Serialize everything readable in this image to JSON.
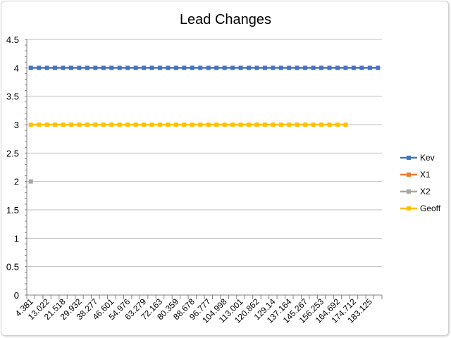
{
  "chart_data": {
    "type": "line",
    "title": "Lead Changes",
    "xlabel": "",
    "ylabel": "",
    "ylim": [
      0,
      4.5
    ],
    "yticks": [
      "0",
      "0.5",
      "1",
      "1.5",
      "2",
      "2.5",
      "3",
      "3.5",
      "4",
      "4.5"
    ],
    "x_tick_labels": [
      "4.381",
      "13.022",
      "21.518",
      "29.932",
      "38.277",
      "46.601",
      "54.976",
      "63.279",
      "72.163",
      "80.359",
      "88.678",
      "96.777",
      "104.998",
      "113.001",
      "120.862",
      "129.14",
      "137.164",
      "145.267",
      "156.253",
      "164.692",
      "174.712",
      "183.125"
    ],
    "category_count": 44,
    "grid": "horizontal",
    "legend_position": "right",
    "series": [
      {
        "name": "Kev",
        "color": "#4472C4",
        "start_index": 0,
        "count": 44,
        "value": 4
      },
      {
        "name": "X1",
        "color": "#ED7D31",
        "start_index": 0,
        "count": 0,
        "value": null
      },
      {
        "name": "X2",
        "color": "#A5A5A5",
        "start_index": 0,
        "count": 1,
        "value": 2
      },
      {
        "name": "Geoff",
        "color": "#FFC000",
        "start_index": 0,
        "count": 40,
        "value": 3
      }
    ]
  }
}
